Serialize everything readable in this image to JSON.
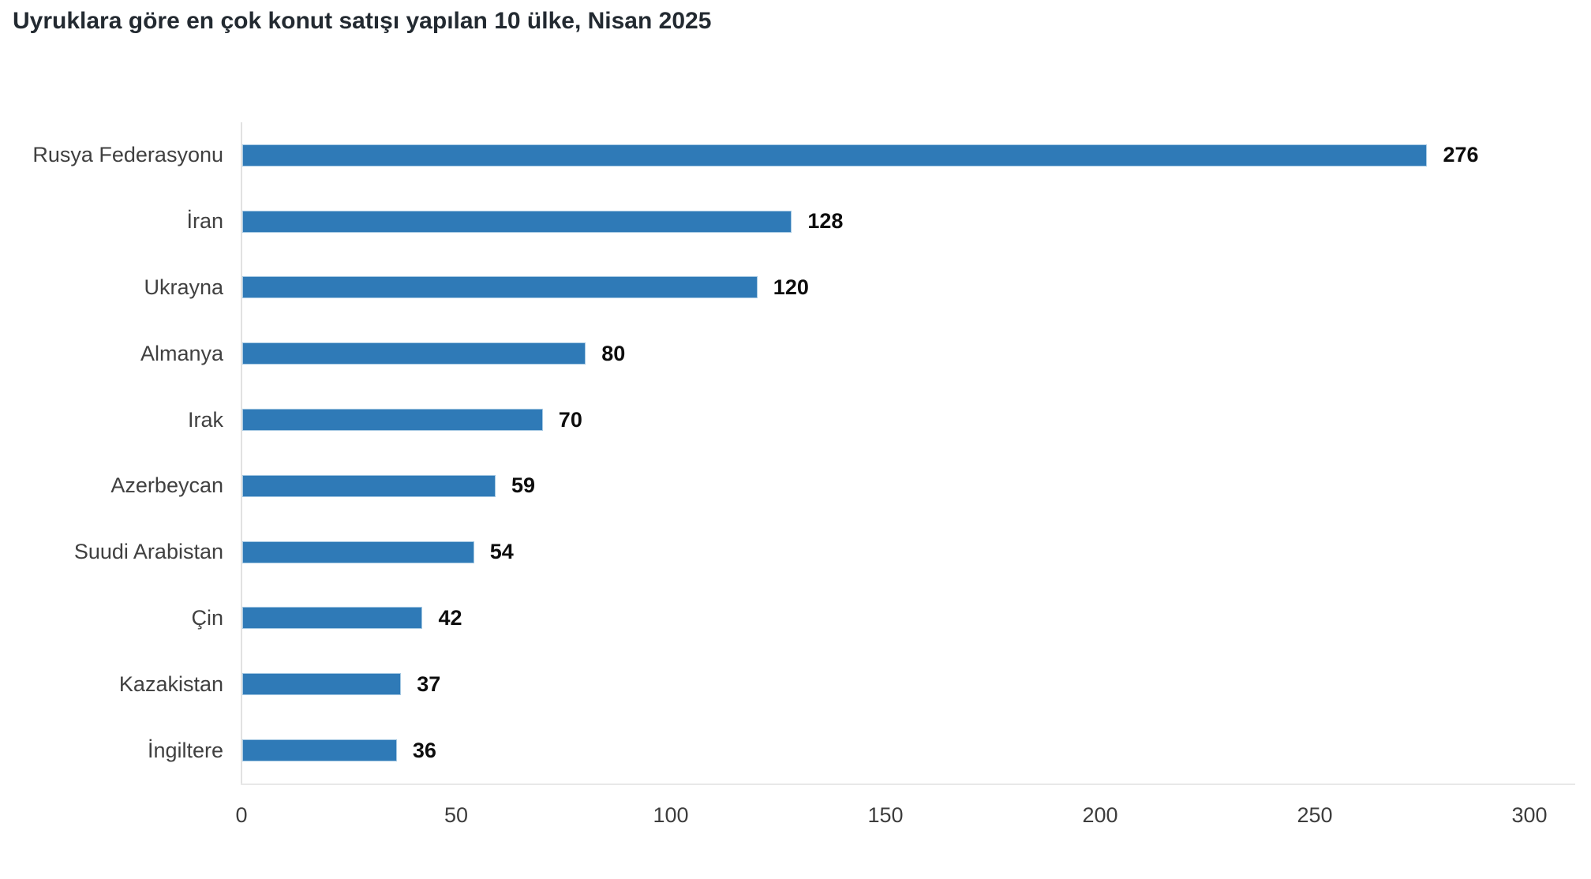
{
  "title": "Uyruklara göre en çok konut satışı yapılan 10 ülke, Nisan 2025",
  "chart_data": {
    "type": "bar",
    "orientation": "horizontal",
    "title": "Uyruklara göre en çok konut satışı yapılan 10 ülke, Nisan 2025",
    "categories": [
      "Rusya Federasyonu",
      "İran",
      "Ukrayna",
      "Almanya",
      "Irak",
      "Azerbeycan",
      "Suudi Arabistan",
      "Çin",
      "Kazakistan",
      "İngiltere"
    ],
    "values": [
      276,
      128,
      120,
      80,
      70,
      59,
      54,
      42,
      37,
      36
    ],
    "data_labels": [
      "276",
      "128",
      "120",
      "80",
      "70",
      "59",
      "54",
      "42",
      "37",
      "36"
    ],
    "xlabel": "",
    "ylabel": "",
    "xlim": [
      0,
      300
    ],
    "x_ticks": [
      "0",
      "50",
      "100",
      "150",
      "200",
      "250",
      "300"
    ],
    "x_tick_values": [
      0,
      50,
      100,
      150,
      200,
      250,
      300
    ],
    "grid": false,
    "legend": false
  },
  "colors": {
    "bar_fill": "#2f7ab7",
    "bar_border": "#a6c9e3",
    "axis_line": "#e2e2e2",
    "title_text": "#232a31",
    "category_text": "#404040",
    "value_text": "#0d0d0d",
    "tick_text": "#3d3d3d",
    "background": "#ffffff"
  }
}
